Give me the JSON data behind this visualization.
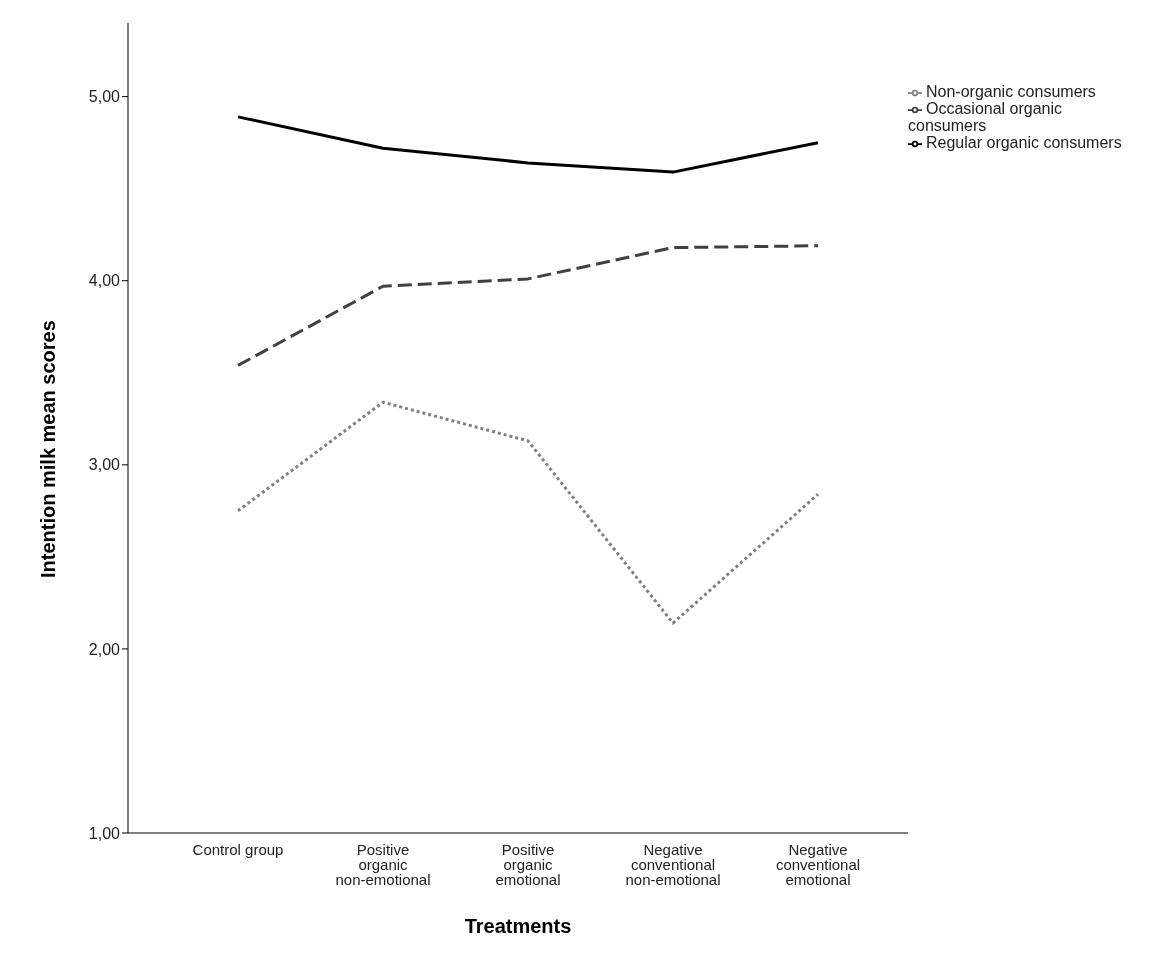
{
  "chart_data": {
    "type": "line",
    "xlabel": "Treatments",
    "ylabel": "Intention milk mean scores",
    "categories": [
      "Control group",
      "Positive organic non-emotional",
      "Positive organic emotional",
      "Negative conventional non-emotional",
      "Negative conventional emotional"
    ],
    "series": [
      {
        "name": "Regular organic consumers",
        "color": "#000000",
        "line_style": "solid",
        "values": [
          4.89,
          4.72,
          4.64,
          4.59,
          4.75
        ]
      },
      {
        "name": "Occasional organic consumers",
        "color": "#404040",
        "line_style": "dashed",
        "values": [
          3.54,
          3.97,
          4.01,
          4.18,
          4.19
        ]
      },
      {
        "name": "Non-organic consumers",
        "color": "#808080",
        "line_style": "dotted",
        "values": [
          2.75,
          3.34,
          3.13,
          2.14,
          2.84
        ]
      }
    ],
    "ylim": [
      1,
      5.4
    ],
    "yticks": [
      {
        "value": 1,
        "label": "1,00"
      },
      {
        "value": 2,
        "label": "2,00"
      },
      {
        "value": 3,
        "label": "3,00"
      },
      {
        "value": 4,
        "label": "4,00"
      },
      {
        "value": 5,
        "label": "5,00"
      }
    ],
    "grid": false,
    "legend": "top right",
    "marker": "none"
  }
}
